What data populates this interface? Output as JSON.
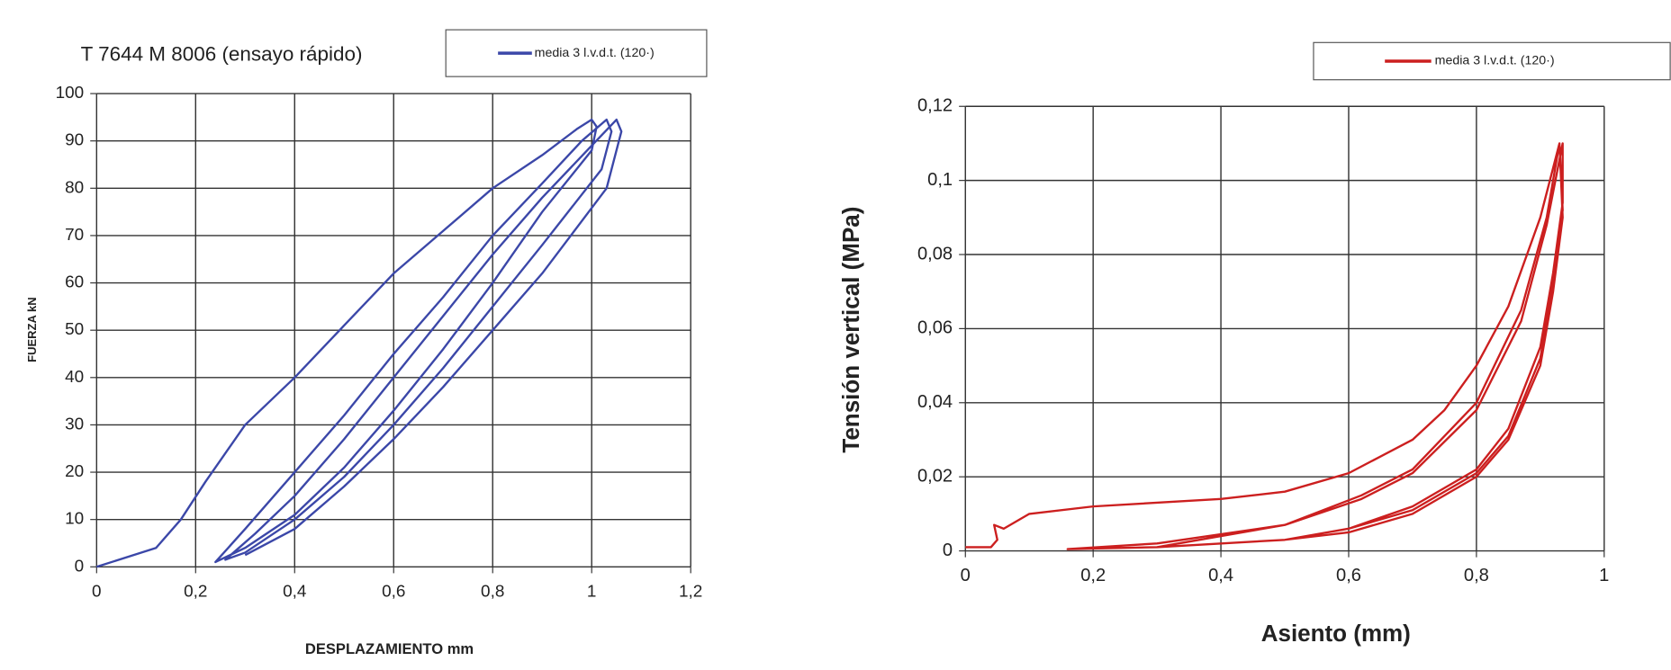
{
  "chart_data": [
    {
      "type": "line",
      "title": "T 7644 M 8006 (ensayo rápido)",
      "x_label": "DESPLAZAMIENTO mm",
      "y_label": "FUERZA kN",
      "xlim": [
        0,
        1.2
      ],
      "xticks": [
        0,
        {
          "value": 0.2,
          "label": "0,2"
        },
        {
          "value": 0.4,
          "label": "0,4"
        },
        {
          "value": 0.6,
          "label": "0,6"
        },
        {
          "value": 0.8,
          "label": "0,8"
        },
        1,
        {
          "value": 1.2,
          "label": "1,2"
        }
      ],
      "ylim": [
        0,
        100
      ],
      "yticks": [
        0,
        10,
        20,
        30,
        40,
        50,
        60,
        70,
        80,
        90,
        100
      ],
      "grid": true,
      "legend": "top-right",
      "series": [
        {
          "name": "media 3 l.v.d.t. (120·)",
          "color": "#3b47a8",
          "x": [
            0,
            0.12,
            0.17,
            0.22,
            0.3,
            0.4,
            0.5,
            0.6,
            0.7,
            0.8,
            0.9,
            0.97,
            1.0,
            1.01,
            1.0,
            0.9,
            0.8,
            0.7,
            0.6,
            0.5,
            0.4,
            0.3,
            0.24,
            0.3,
            0.4,
            0.5,
            0.6,
            0.7,
            0.8,
            0.9,
            0.98,
            1.03,
            1.04,
            1.02,
            0.9,
            0.8,
            0.7,
            0.6,
            0.5,
            0.4,
            0.3,
            0.26,
            0.32,
            0.4,
            0.5,
            0.6,
            0.7,
            0.8,
            0.9,
            1.0,
            1.05,
            1.06,
            1.03,
            0.9,
            0.8,
            0.7,
            0.6,
            0.5,
            0.4,
            0.3
          ],
          "values": [
            0,
            4,
            10,
            18,
            30,
            40,
            51,
            62,
            71,
            80,
            87,
            92.5,
            94.5,
            93,
            88,
            75,
            60,
            46,
            33,
            21,
            11,
            4,
            1,
            8,
            20,
            32,
            45,
            57,
            70,
            81,
            90,
            94.5,
            92,
            84,
            68,
            55,
            42,
            30,
            19,
            10,
            3,
            1.5,
            7,
            15,
            27,
            40,
            53,
            66,
            78,
            89,
            94.5,
            92,
            80,
            62,
            50,
            38,
            27,
            17,
            8,
            2.5
          ]
        }
      ]
    },
    {
      "type": "line",
      "x_label": "Asiento (mm)",
      "y_label": "Tensión vertical (MPa)",
      "xlim": [
        0,
        1
      ],
      "xticks": [
        0,
        {
          "value": 0.2,
          "label": "0,2"
        },
        {
          "value": 0.4,
          "label": "0,4"
        },
        {
          "value": 0.6,
          "label": "0,6"
        },
        {
          "value": 0.8,
          "label": "0,8"
        },
        1
      ],
      "ylim": [
        0,
        0.12
      ],
      "yticks": [
        0,
        {
          "value": 0.02,
          "label": "0,02"
        },
        {
          "value": 0.04,
          "label": "0,04"
        },
        {
          "value": 0.06,
          "label": "0,06"
        },
        {
          "value": 0.08,
          "label": "0,08"
        },
        {
          "value": 0.1,
          "label": "0,1"
        },
        {
          "value": 0.12,
          "label": "0,12"
        }
      ],
      "grid": true,
      "legend": "top-right",
      "series": [
        {
          "name": "media 3 l.v.d.t. (120·)",
          "color": "#cc1f1f",
          "x": [
            0,
            0.04,
            0.05,
            0.045,
            0.06,
            0.1,
            0.2,
            0.4,
            0.5,
            0.6,
            0.7,
            0.75,
            0.8,
            0.85,
            0.9,
            0.93,
            0.935,
            0.92,
            0.9,
            0.85,
            0.8,
            0.7,
            0.6,
            0.5,
            0.3,
            0.16,
            0.3,
            0.5,
            0.62,
            0.7,
            0.8,
            0.87,
            0.91,
            0.93,
            0.935,
            0.92,
            0.9,
            0.85,
            0.8,
            0.7,
            0.6,
            0.5,
            0.3,
            0.5,
            0.62,
            0.7,
            0.8,
            0.87,
            0.91,
            0.935,
            0.935,
            0.92,
            0.9,
            0.85,
            0.8,
            0.7,
            0.6
          ],
          "values": [
            0.001,
            0.001,
            0.003,
            0.007,
            0.006,
            0.01,
            0.012,
            0.014,
            0.016,
            0.021,
            0.03,
            0.038,
            0.05,
            0.066,
            0.09,
            0.11,
            0.09,
            0.07,
            0.05,
            0.03,
            0.02,
            0.01,
            0.005,
            0.003,
            0.001,
            0.0005,
            0.002,
            0.007,
            0.015,
            0.022,
            0.04,
            0.065,
            0.09,
            0.11,
            0.092,
            0.072,
            0.052,
            0.031,
            0.021,
            0.011,
            0.006,
            0.003,
            0.001,
            0.007,
            0.014,
            0.021,
            0.038,
            0.062,
            0.088,
            0.11,
            0.094,
            0.075,
            0.055,
            0.033,
            0.022,
            0.012,
            0.006
          ]
        }
      ]
    }
  ]
}
